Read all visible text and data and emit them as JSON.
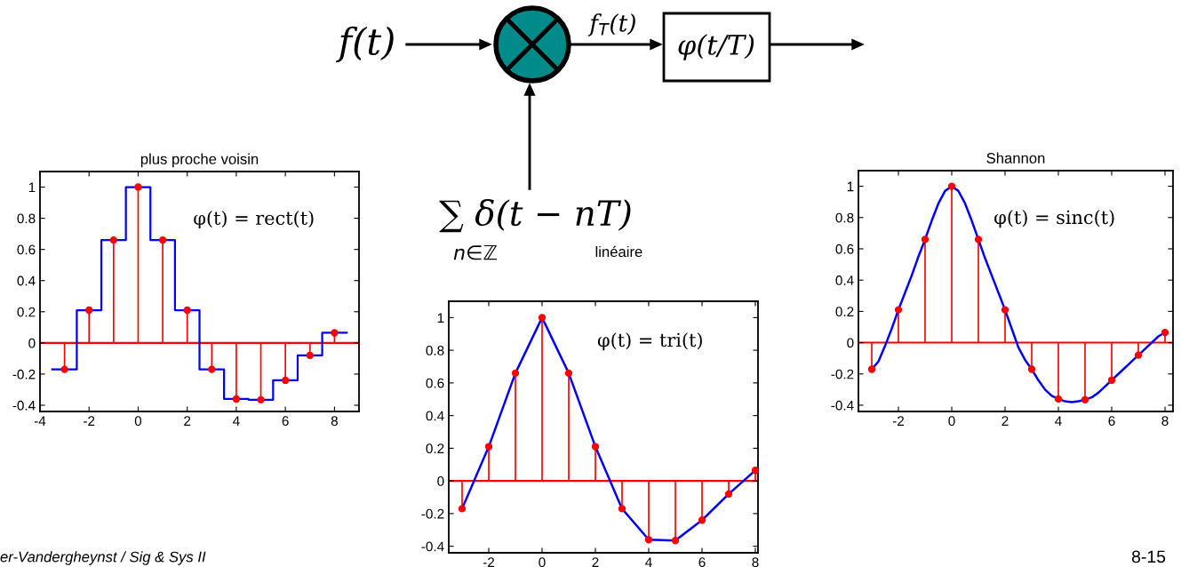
{
  "chart_data": [
    {
      "type": "other",
      "annotations": [
        "f(t)",
        "f$_{T}$(t)",
        "φ(t/T)",
        "∑ δ(t − nT)",
        "n∈ℤ",
        "er-Vandergheynst / Sig & Sys II",
        "8-15"
      ]
    },
    {
      "type": "lollipop",
      "title": "plus proche voisin",
      "x": [
        -3,
        -2,
        -1,
        0,
        1,
        2,
        3,
        4,
        5,
        6,
        7,
        8
      ],
      "marker": "circle",
      "grid": false,
      "series": [
        {
          "type": "lollipop",
          "color": "#ff0000",
          "values": [
            -0.17,
            0.21,
            0.66,
            1,
            0.66,
            0.21,
            -0.17,
            -0.36,
            -0.365,
            -0.24,
            -0.08,
            0.065
          ]
        },
        {
          "type": "step",
          "color": "#0000ff",
          "marker": "none",
          "x": [
            -3.5,
            -2.5,
            -1.5,
            -0.5,
            0.5,
            1.5,
            2.5,
            3.5,
            4.5,
            5.5,
            6.5,
            7.5,
            8.5
          ],
          "values": [
            -0.17,
            0.21,
            0.66,
            1,
            0.66,
            0.21,
            -0.17,
            -0.36,
            -0.365,
            -0.24,
            -0.08,
            0.065,
            0.065
          ]
        }
      ],
      "ref_lines": [
        {
          "axis": "y",
          "value": 0,
          "color": "#ff0000"
        }
      ],
      "xlim": [
        -4,
        9
      ],
      "xticks": [
        -4,
        -2,
        0,
        2,
        4,
        6,
        8
      ],
      "ylim": [
        -0.44,
        1.1
      ],
      "yticks": [
        -0.4,
        -0.2,
        0,
        0.2,
        0.4,
        0.6,
        0.8,
        1
      ],
      "annotations": [
        "φ(t) = rect(t)"
      ]
    },
    {
      "type": "lollipop",
      "title": "linéaire",
      "x": [
        -3,
        -2,
        -1,
        0,
        1,
        2,
        3,
        4,
        5,
        6,
        7,
        8
      ],
      "marker": "circle",
      "grid": false,
      "series": [
        {
          "type": "lollipop",
          "color": "#ff0000",
          "values": [
            -0.17,
            0.21,
            0.66,
            1,
            0.66,
            0.21,
            -0.17,
            -0.36,
            -0.365,
            -0.24,
            -0.08,
            0.065
          ]
        },
        {
          "type": "line",
          "color": "#0000ff",
          "marker": "none",
          "values": [
            -0.17,
            0.21,
            0.66,
            1,
            0.66,
            0.21,
            -0.17,
            -0.36,
            -0.365,
            -0.24,
            -0.08,
            0.065
          ]
        }
      ],
      "ref_lines": [
        {
          "axis": "y",
          "value": 0,
          "color": "#ff0000"
        }
      ],
      "xlim": [
        -3.5,
        8.1
      ],
      "xticks": [
        -2,
        0,
        2,
        4,
        6,
        8
      ],
      "ylim": [
        -0.44,
        1.1
      ],
      "yticks": [
        -0.4,
        -0.2,
        0,
        0.2,
        0.4,
        0.6,
        0.8,
        1
      ],
      "annotations": [
        "φ(t) = tri(t)"
      ]
    },
    {
      "type": "lollipop",
      "title": "Shannon",
      "x": [
        -3,
        -2,
        -1,
        0,
        1,
        2,
        3,
        4,
        5,
        6,
        7,
        8
      ],
      "marker": "circle",
      "grid": false,
      "series": [
        {
          "type": "lollipop",
          "color": "#ff0000",
          "values": [
            -0.17,
            0.21,
            0.66,
            1,
            0.66,
            0.21,
            -0.17,
            -0.36,
            -0.365,
            -0.24,
            -0.08,
            0.065
          ]
        },
        {
          "type": "line",
          "color": "#0000ff",
          "marker": "none",
          "x": [
            -3,
            -2.75,
            -2.5,
            -2.25,
            -2,
            -1.75,
            -1.5,
            -1.25,
            -1,
            -0.75,
            -0.5,
            -0.25,
            0,
            0.25,
            0.5,
            0.75,
            1,
            1.25,
            1.5,
            1.75,
            2,
            2.25,
            2.5,
            2.75,
            3,
            3.25,
            3.5,
            3.75,
            4,
            4.25,
            4.5,
            4.75,
            5,
            5.25,
            5.5,
            5.75,
            6,
            6.25,
            6.5,
            6.75,
            7,
            7.25,
            7.5,
            7.75,
            8
          ],
          "values": [
            -0.17,
            -0.12,
            -0.02,
            0.09,
            0.21,
            0.32,
            0.43,
            0.55,
            0.66,
            0.78,
            0.89,
            0.97,
            1,
            0.97,
            0.89,
            0.78,
            0.66,
            0.54,
            0.43,
            0.32,
            0.21,
            0.09,
            -0.03,
            -0.11,
            -0.17,
            -0.24,
            -0.3,
            -0.34,
            -0.36,
            -0.375,
            -0.38,
            -0.375,
            -0.365,
            -0.35,
            -0.32,
            -0.28,
            -0.24,
            -0.2,
            -0.16,
            -0.12,
            -0.08,
            -0.04,
            0,
            0.04,
            0.065
          ]
        }
      ],
      "ref_lines": [
        {
          "axis": "y",
          "value": 0,
          "color": "#ff0000"
        }
      ],
      "xlim": [
        -3.5,
        8.3
      ],
      "xticks": [
        -2,
        0,
        2,
        4,
        6,
        8
      ],
      "ylim": [
        -0.44,
        1.1
      ],
      "yticks": [
        -0.4,
        -0.2,
        0,
        0.2,
        0.4,
        0.6,
        0.8,
        1
      ],
      "annotations": [
        "φ(t) = sinc(t)"
      ]
    }
  ]
}
